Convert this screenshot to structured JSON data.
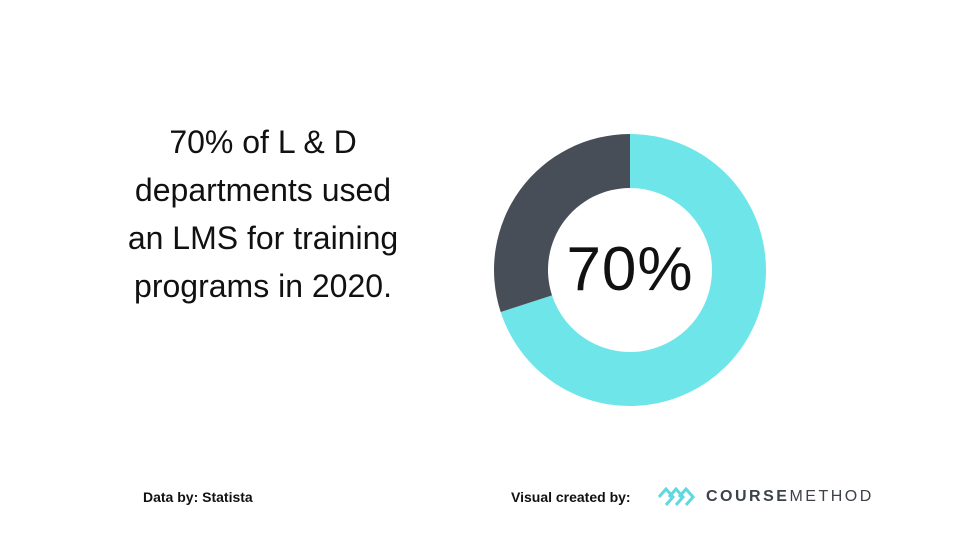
{
  "statement": "70% of L & D departments used an LMS for training programs in 2020.",
  "source": "Data by: Statista",
  "credit": "Visual created by:",
  "logo": {
    "part1": "COURSE",
    "part2": "METHOD",
    "icon": "coursemethod-logo-icon"
  },
  "colors": {
    "primary": "#6ee5e8",
    "remainder": "#484e57",
    "logo_icon": "#5fd8e0"
  },
  "chart_data": {
    "type": "pie",
    "categories": [
      "",
      ""
    ],
    "values": [
      70,
      30
    ],
    "center_label": "70%",
    "title": ""
  }
}
